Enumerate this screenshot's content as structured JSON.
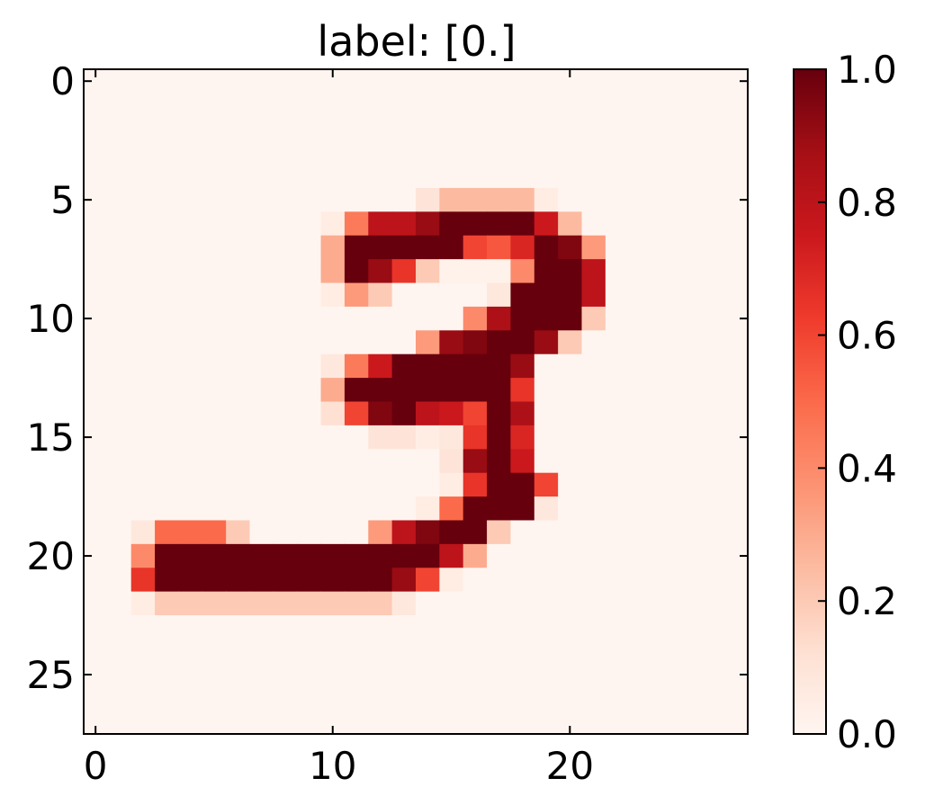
{
  "chart_data": {
    "type": "heatmap",
    "title": "label: [0.]",
    "xlabel": "",
    "ylabel": "",
    "colormap": "Reds",
    "colormap_stops": [
      "#fff5f0",
      "#fee0d2",
      "#fcbba1",
      "#fc9272",
      "#fb6a4a",
      "#ef3b2c",
      "#cb181d",
      "#a50f15",
      "#67000d"
    ],
    "value_range": [
      0,
      1
    ],
    "grid": false,
    "x_ticks": [
      0,
      10,
      20
    ],
    "x_tick_labels": [
      "0",
      "10",
      "20"
    ],
    "y_ticks": [
      0,
      5,
      10,
      15,
      20,
      25
    ],
    "y_tick_labels": [
      "0",
      "5",
      "10",
      "15",
      "20",
      "25"
    ],
    "colorbar": {
      "ticks": [
        0,
        0.2,
        0.4,
        0.6,
        0.8,
        1.0
      ],
      "tick_labels": [
        "0.0",
        "0.2",
        "0.4",
        "0.6",
        "0.8",
        "1.0"
      ]
    },
    "rows": 28,
    "cols": 28,
    "nonzero_pixels": [
      [
        5,
        14,
        0.1
      ],
      [
        5,
        15,
        0.25
      ],
      [
        5,
        16,
        0.25
      ],
      [
        5,
        17,
        0.25
      ],
      [
        5,
        18,
        0.25
      ],
      [
        5,
        19,
        0.05
      ],
      [
        6,
        10,
        0.05
      ],
      [
        6,
        11,
        0.45
      ],
      [
        6,
        12,
        0.8
      ],
      [
        6,
        13,
        0.8
      ],
      [
        6,
        14,
        0.9
      ],
      [
        6,
        15,
        1.0
      ],
      [
        6,
        16,
        1.0
      ],
      [
        6,
        17,
        1.0
      ],
      [
        6,
        18,
        1.0
      ],
      [
        6,
        19,
        0.75
      ],
      [
        6,
        20,
        0.25
      ],
      [
        7,
        10,
        0.3
      ],
      [
        7,
        11,
        1.0
      ],
      [
        7,
        12,
        1.0
      ],
      [
        7,
        13,
        1.0
      ],
      [
        7,
        14,
        1.0
      ],
      [
        7,
        15,
        1.0
      ],
      [
        7,
        16,
        0.6
      ],
      [
        7,
        17,
        0.55
      ],
      [
        7,
        18,
        0.7
      ],
      [
        7,
        19,
        1.0
      ],
      [
        7,
        20,
        0.95
      ],
      [
        7,
        21,
        0.35
      ],
      [
        8,
        10,
        0.3
      ],
      [
        8,
        11,
        1.0
      ],
      [
        8,
        12,
        0.9
      ],
      [
        8,
        13,
        0.65
      ],
      [
        8,
        14,
        0.2
      ],
      [
        8,
        15,
        0.02
      ],
      [
        8,
        16,
        0.02
      ],
      [
        8,
        17,
        0.02
      ],
      [
        8,
        18,
        0.4
      ],
      [
        8,
        19,
        1.0
      ],
      [
        8,
        20,
        1.0
      ],
      [
        8,
        21,
        0.8
      ],
      [
        9,
        10,
        0.05
      ],
      [
        9,
        11,
        0.35
      ],
      [
        9,
        12,
        0.2
      ],
      [
        9,
        17,
        0.08
      ],
      [
        9,
        18,
        1.0
      ],
      [
        9,
        19,
        1.0
      ],
      [
        9,
        20,
        1.0
      ],
      [
        9,
        21,
        0.8
      ],
      [
        10,
        16,
        0.4
      ],
      [
        10,
        17,
        0.85
      ],
      [
        10,
        18,
        1.0
      ],
      [
        10,
        19,
        1.0
      ],
      [
        10,
        20,
        1.0
      ],
      [
        10,
        21,
        0.2
      ],
      [
        11,
        14,
        0.35
      ],
      [
        11,
        15,
        0.9
      ],
      [
        11,
        16,
        0.95
      ],
      [
        11,
        17,
        1.0
      ],
      [
        11,
        18,
        1.0
      ],
      [
        11,
        19,
        0.9
      ],
      [
        11,
        20,
        0.2
      ],
      [
        12,
        10,
        0.08
      ],
      [
        12,
        11,
        0.45
      ],
      [
        12,
        12,
        0.75
      ],
      [
        12,
        13,
        1.0
      ],
      [
        12,
        14,
        1.0
      ],
      [
        12,
        15,
        1.0
      ],
      [
        12,
        16,
        1.0
      ],
      [
        12,
        17,
        1.0
      ],
      [
        12,
        18,
        0.9
      ],
      [
        13,
        10,
        0.3
      ],
      [
        13,
        11,
        1.0
      ],
      [
        13,
        12,
        1.0
      ],
      [
        13,
        13,
        1.0
      ],
      [
        13,
        14,
        1.0
      ],
      [
        13,
        15,
        1.0
      ],
      [
        13,
        16,
        1.0
      ],
      [
        13,
        17,
        1.0
      ],
      [
        13,
        18,
        0.65
      ],
      [
        14,
        10,
        0.12
      ],
      [
        14,
        11,
        0.6
      ],
      [
        14,
        12,
        0.95
      ],
      [
        14,
        13,
        1.0
      ],
      [
        14,
        14,
        0.8
      ],
      [
        14,
        15,
        0.75
      ],
      [
        14,
        16,
        0.6
      ],
      [
        14,
        17,
        1.0
      ],
      [
        14,
        18,
        0.85
      ],
      [
        15,
        12,
        0.1
      ],
      [
        15,
        13,
        0.1
      ],
      [
        15,
        14,
        0.05
      ],
      [
        15,
        15,
        0.08
      ],
      [
        15,
        16,
        0.65
      ],
      [
        15,
        17,
        1.0
      ],
      [
        15,
        18,
        0.7
      ],
      [
        16,
        15,
        0.1
      ],
      [
        16,
        16,
        0.9
      ],
      [
        16,
        17,
        1.0
      ],
      [
        16,
        18,
        0.75
      ],
      [
        17,
        15,
        0.05
      ],
      [
        17,
        16,
        0.65
      ],
      [
        17,
        17,
        1.0
      ],
      [
        17,
        18,
        1.0
      ],
      [
        17,
        19,
        0.6
      ],
      [
        18,
        14,
        0.05
      ],
      [
        18,
        15,
        0.5
      ],
      [
        18,
        16,
        1.0
      ],
      [
        18,
        17,
        1.0
      ],
      [
        18,
        18,
        1.0
      ],
      [
        18,
        19,
        0.08
      ],
      [
        19,
        2,
        0.08
      ],
      [
        19,
        3,
        0.5
      ],
      [
        19,
        4,
        0.5
      ],
      [
        19,
        5,
        0.5
      ],
      [
        19,
        6,
        0.2
      ],
      [
        19,
        12,
        0.35
      ],
      [
        19,
        13,
        0.8
      ],
      [
        19,
        14,
        0.95
      ],
      [
        19,
        15,
        1.0
      ],
      [
        19,
        16,
        1.0
      ],
      [
        19,
        17,
        0.2
      ],
      [
        20,
        2,
        0.4
      ],
      [
        20,
        3,
        1.0
      ],
      [
        20,
        4,
        1.0
      ],
      [
        20,
        5,
        1.0
      ],
      [
        20,
        6,
        1.0
      ],
      [
        20,
        7,
        1.0
      ],
      [
        20,
        8,
        1.0
      ],
      [
        20,
        9,
        1.0
      ],
      [
        20,
        10,
        1.0
      ],
      [
        20,
        11,
        1.0
      ],
      [
        20,
        12,
        1.0
      ],
      [
        20,
        13,
        1.0
      ],
      [
        20,
        14,
        1.0
      ],
      [
        20,
        15,
        0.8
      ],
      [
        20,
        16,
        0.3
      ],
      [
        21,
        2,
        0.65
      ],
      [
        21,
        3,
        1.0
      ],
      [
        21,
        4,
        1.0
      ],
      [
        21,
        5,
        1.0
      ],
      [
        21,
        6,
        1.0
      ],
      [
        21,
        7,
        1.0
      ],
      [
        21,
        8,
        1.0
      ],
      [
        21,
        9,
        1.0
      ],
      [
        21,
        10,
        1.0
      ],
      [
        21,
        11,
        1.0
      ],
      [
        21,
        12,
        1.0
      ],
      [
        21,
        13,
        0.9
      ],
      [
        21,
        14,
        0.6
      ],
      [
        21,
        15,
        0.05
      ],
      [
        22,
        2,
        0.05
      ],
      [
        22,
        3,
        0.2
      ],
      [
        22,
        4,
        0.2
      ],
      [
        22,
        5,
        0.2
      ],
      [
        22,
        6,
        0.2
      ],
      [
        22,
        7,
        0.2
      ],
      [
        22,
        8,
        0.2
      ],
      [
        22,
        9,
        0.2
      ],
      [
        22,
        10,
        0.2
      ],
      [
        22,
        11,
        0.2
      ],
      [
        22,
        12,
        0.2
      ],
      [
        22,
        13,
        0.08
      ]
    ]
  }
}
